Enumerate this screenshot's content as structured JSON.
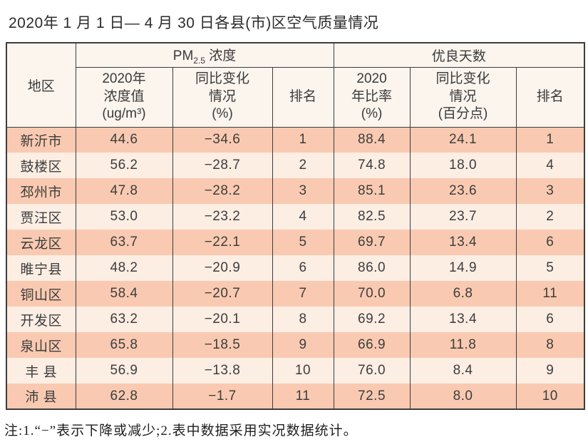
{
  "title": "2020年 1 月 1 日— 4 月 30 日各县(市)区空气质量情况",
  "table": {
    "region_header": "地区",
    "pm_group": {
      "text": "PM",
      "sub": "2.5",
      "tail": " 浓度"
    },
    "good_days_group": "优良天数",
    "subheaders": {
      "pm_value": "2020年\n浓度值\n(ug/m³)",
      "pm_change": "同比变化\n情况\n(%)",
      "pm_rank": "排名",
      "good_rate": "2020\n年比率\n(%)",
      "good_change": "同比变化\n情况\n(百分点)",
      "good_rank": "排名"
    },
    "rows": [
      {
        "region": "新沂市",
        "pm_value": "44.6",
        "pm_change": "−34.6",
        "pm_rank": "1",
        "good_rate": "88.4",
        "good_change": "24.1",
        "good_rank": "1"
      },
      {
        "region": "鼓楼区",
        "pm_value": "56.2",
        "pm_change": "−28.7",
        "pm_rank": "2",
        "good_rate": "74.8",
        "good_change": "18.0",
        "good_rank": "4"
      },
      {
        "region": "邳州市",
        "pm_value": "47.8",
        "pm_change": "−28.2",
        "pm_rank": "3",
        "good_rate": "85.1",
        "good_change": "23.6",
        "good_rank": "3"
      },
      {
        "region": "贾汪区",
        "pm_value": "53.0",
        "pm_change": "−23.2",
        "pm_rank": "4",
        "good_rate": "82.5",
        "good_change": "23.7",
        "good_rank": "2"
      },
      {
        "region": "云龙区",
        "pm_value": "63.7",
        "pm_change": "−22.1",
        "pm_rank": "5",
        "good_rate": "69.7",
        "good_change": "13.4",
        "good_rank": "6"
      },
      {
        "region": "睢宁县",
        "pm_value": "48.2",
        "pm_change": "−20.9",
        "pm_rank": "6",
        "good_rate": "86.0",
        "good_change": "14.9",
        "good_rank": "5"
      },
      {
        "region": "铜山区",
        "pm_value": "58.4",
        "pm_change": "−20.7",
        "pm_rank": "7",
        "good_rate": "70.0",
        "good_change": "6.8",
        "good_rank": "11"
      },
      {
        "region": "开发区",
        "pm_value": "63.2",
        "pm_change": "−20.1",
        "pm_rank": "8",
        "good_rate": "69.2",
        "good_change": "13.4",
        "good_rank": "6"
      },
      {
        "region": "泉山区",
        "pm_value": "65.8",
        "pm_change": "−18.5",
        "pm_rank": "9",
        "good_rate": "66.9",
        "good_change": "11.8",
        "good_rank": "8"
      },
      {
        "region": "丰 县",
        "pm_value": "56.9",
        "pm_change": "−13.8",
        "pm_rank": "10",
        "good_rate": "76.0",
        "good_change": "8.4",
        "good_rank": "9"
      },
      {
        "region": "沛 县",
        "pm_value": "62.8",
        "pm_change": "−1.7",
        "pm_rank": "11",
        "good_rate": "72.5",
        "good_change": "8.0",
        "good_rank": "10"
      }
    ]
  },
  "note": "注:1.“−”表示下降或减少;2.表中数据采用实况数据统计。",
  "colors": {
    "row_dark": "#f9cab1",
    "row_light": "#fdeee4",
    "header_bg": "#fcf5ee",
    "border": "#3c3c3c",
    "text": "#3a3a3a"
  }
}
